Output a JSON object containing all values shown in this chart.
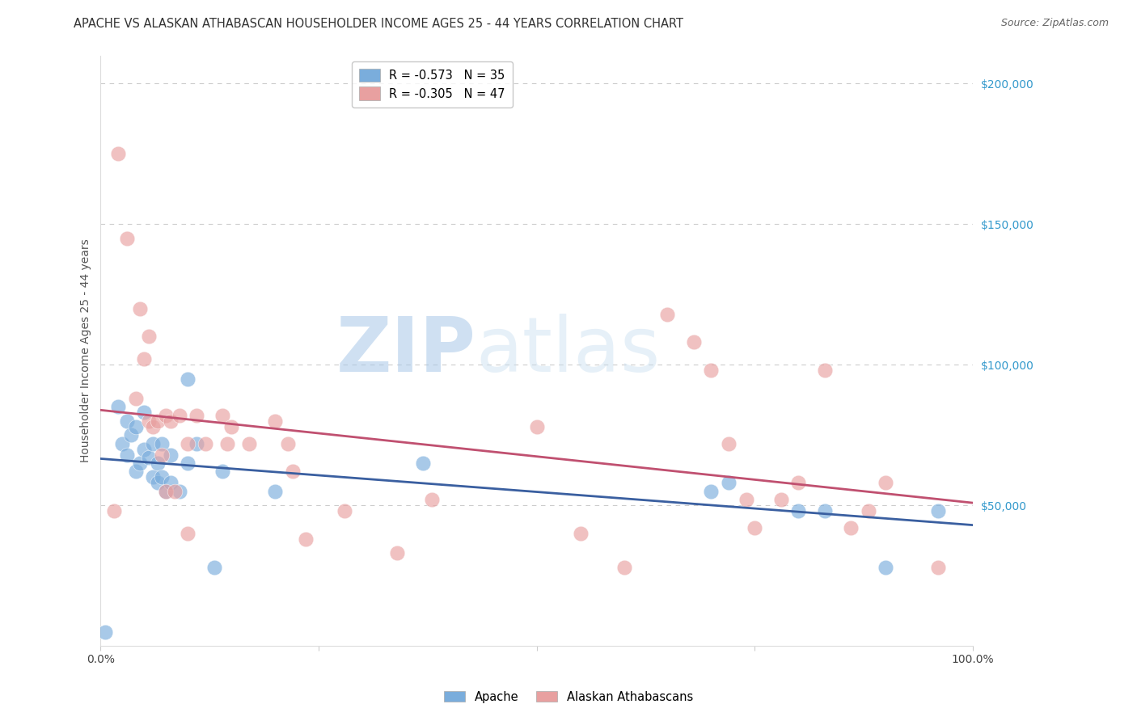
{
  "title": "APACHE VS ALASKAN ATHABASCAN HOUSEHOLDER INCOME AGES 25 - 44 YEARS CORRELATION CHART",
  "source": "Source: ZipAtlas.com",
  "ylabel": "Householder Income Ages 25 - 44 years",
  "xlim": [
    0,
    1.0
  ],
  "ylim": [
    0,
    210000
  ],
  "ytick_labels_right": [
    "$200,000",
    "$150,000",
    "$100,000",
    "$50,000"
  ],
  "ytick_values_right": [
    200000,
    150000,
    100000,
    50000
  ],
  "watermark_zip": "ZIP",
  "watermark_atlas": "atlas",
  "legend_line1": "R = -0.573   N = 35",
  "legend_line2": "R = -0.305   N = 47",
  "apache_color": "#7aaddc",
  "athabascan_color": "#e8a0a0",
  "apache_line_color": "#3a5fa0",
  "athabascan_line_color": "#c05070",
  "background_color": "#ffffff",
  "grid_color": "#cccccc",
  "title_fontsize": 10.5,
  "axis_label_fontsize": 10,
  "tick_fontsize": 10,
  "legend_fontsize": 10.5,
  "apache_x": [
    0.005,
    0.02,
    0.025,
    0.03,
    0.03,
    0.035,
    0.04,
    0.04,
    0.045,
    0.05,
    0.05,
    0.055,
    0.06,
    0.06,
    0.065,
    0.065,
    0.07,
    0.07,
    0.075,
    0.08,
    0.08,
    0.09,
    0.1,
    0.1,
    0.11,
    0.13,
    0.14,
    0.2,
    0.37,
    0.7,
    0.72,
    0.8,
    0.83,
    0.9,
    0.96
  ],
  "apache_y": [
    5000,
    85000,
    72000,
    80000,
    68000,
    75000,
    78000,
    62000,
    65000,
    83000,
    70000,
    67000,
    72000,
    60000,
    65000,
    58000,
    72000,
    60000,
    55000,
    68000,
    58000,
    55000,
    95000,
    65000,
    72000,
    28000,
    62000,
    55000,
    65000,
    55000,
    58000,
    48000,
    48000,
    28000,
    48000
  ],
  "athabascan_x": [
    0.015,
    0.02,
    0.03,
    0.04,
    0.045,
    0.05,
    0.055,
    0.055,
    0.06,
    0.065,
    0.07,
    0.075,
    0.075,
    0.08,
    0.085,
    0.09,
    0.1,
    0.1,
    0.11,
    0.12,
    0.14,
    0.145,
    0.15,
    0.17,
    0.2,
    0.215,
    0.22,
    0.235,
    0.28,
    0.34,
    0.38,
    0.5,
    0.55,
    0.6,
    0.65,
    0.68,
    0.7,
    0.72,
    0.74,
    0.75,
    0.78,
    0.8,
    0.83,
    0.86,
    0.88,
    0.9,
    0.96
  ],
  "athabascan_y": [
    48000,
    175000,
    145000,
    88000,
    120000,
    102000,
    110000,
    80000,
    78000,
    80000,
    68000,
    82000,
    55000,
    80000,
    55000,
    82000,
    72000,
    40000,
    82000,
    72000,
    82000,
    72000,
    78000,
    72000,
    80000,
    72000,
    62000,
    38000,
    48000,
    33000,
    52000,
    78000,
    40000,
    28000,
    118000,
    108000,
    98000,
    72000,
    52000,
    42000,
    52000,
    58000,
    98000,
    42000,
    48000,
    58000,
    28000
  ]
}
